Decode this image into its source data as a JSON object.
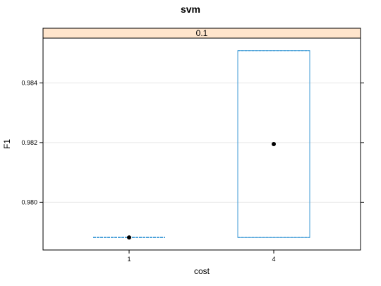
{
  "chart_data": {
    "type": "box",
    "title": "svm",
    "panel_label": "0.1",
    "xlabel": "cost",
    "ylabel": "F1",
    "categories": [
      "1",
      "4"
    ],
    "y_ticks": [
      0.98,
      0.982,
      0.984
    ],
    "y_tick_labels": [
      "0.980",
      "0.982",
      "0.984"
    ],
    "ylim": [
      0.9784,
      0.9855
    ],
    "grid": true,
    "boxes": [
      {
        "category": "1",
        "min": 0.97882,
        "q1": 0.97882,
        "median": 0.97882,
        "q3": 0.97882,
        "max": 0.97882
      },
      {
        "category": "4",
        "min": 0.97882,
        "q1": 0.97882,
        "median": 0.98195,
        "q3": 0.98508,
        "max": 0.98508
      }
    ],
    "colors": {
      "box": "#3d9ad6",
      "median_point": "#000000",
      "strip_fill": "#ffe5cc",
      "grid": "#e6e6e6",
      "axis": "#000000"
    }
  }
}
